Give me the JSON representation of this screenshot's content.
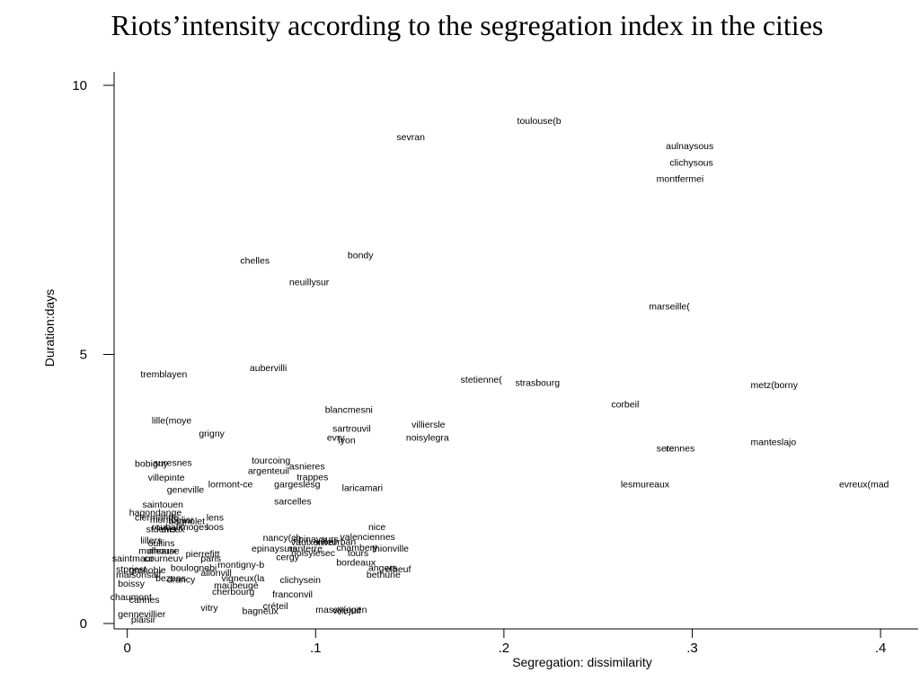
{
  "chart_data": {
    "type": "scatter",
    "title": "Riots’intensity according to the segregation index in the cities",
    "xlabel": "Segregation: dissimilarity",
    "ylabel": "Duration:days",
    "xlim": [
      -0.007,
      0.42
    ],
    "ylim": [
      -0.1,
      10.25
    ],
    "xticks": [
      {
        "value": 0,
        "label": "0"
      },
      {
        "value": 0.1,
        "label": ".1"
      },
      {
        "value": 0.2,
        "label": ".2"
      },
      {
        "value": 0.3,
        "label": ".3"
      },
      {
        "value": 0.4,
        "label": ".4"
      }
    ],
    "yticks": [
      {
        "value": 0,
        "label": "0"
      },
      {
        "value": 5,
        "label": "5"
      },
      {
        "value": 10,
        "label": "10"
      }
    ],
    "grid": false,
    "marker": "text-label",
    "points": [
      {
        "label": "toulouse(b",
        "x": 0.207,
        "y": 9.35
      },
      {
        "label": "sevran",
        "x": 0.143,
        "y": 9.05
      },
      {
        "label": "aulnaysous",
        "x": 0.286,
        "y": 8.88
      },
      {
        "label": "clichysous",
        "x": 0.288,
        "y": 8.57
      },
      {
        "label": "montfermei",
        "x": 0.281,
        "y": 8.27
      },
      {
        "label": "bondy",
        "x": 0.117,
        "y": 6.85
      },
      {
        "label": "chelles",
        "x": 0.06,
        "y": 6.75
      },
      {
        "label": "neuillysur",
        "x": 0.086,
        "y": 6.35
      },
      {
        "label": "marseille(",
        "x": 0.277,
        "y": 5.9
      },
      {
        "label": "tremblayen",
        "x": 0.007,
        "y": 4.64
      },
      {
        "label": "aubervilli",
        "x": 0.065,
        "y": 4.76
      },
      {
        "label": "stetienne(",
        "x": 0.177,
        "y": 4.54
      },
      {
        "label": "strasbourg",
        "x": 0.206,
        "y": 4.48
      },
      {
        "label": "metz(borny",
        "x": 0.331,
        "y": 4.44
      },
      {
        "label": "corbeil",
        "x": 0.257,
        "y": 4.08
      },
      {
        "label": "blancmesni",
        "x": 0.105,
        "y": 3.98
      },
      {
        "label": "lille(moye",
        "x": 0.013,
        "y": 3.78
      },
      {
        "label": "villiersle",
        "x": 0.151,
        "y": 3.71
      },
      {
        "label": "sartrouvil",
        "x": 0.109,
        "y": 3.63
      },
      {
        "label": "grigny",
        "x": 0.038,
        "y": 3.54
      },
      {
        "label": "evry",
        "x": 0.106,
        "y": 3.46
      },
      {
        "label": "noisylegra",
        "x": 0.148,
        "y": 3.46
      },
      {
        "label": "lyon",
        "x": 0.112,
        "y": 3.41
      },
      {
        "label": "manteslajo",
        "x": 0.331,
        "y": 3.38
      },
      {
        "label": "sete",
        "x": 0.281,
        "y": 3.26
      },
      {
        "label": "rennes",
        "x": 0.286,
        "y": 3.26
      },
      {
        "label": "tourcoing",
        "x": 0.066,
        "y": 3.04
      },
      {
        "label": "suresnes",
        "x": 0.014,
        "y": 3.0
      },
      {
        "label": "bobigny",
        "x": 0.004,
        "y": 2.98
      },
      {
        "label": "asnieres",
        "x": 0.086,
        "y": 2.93
      },
      {
        "label": "argenteuil",
        "x": 0.064,
        "y": 2.85
      },
      {
        "label": "villepinte",
        "x": 0.011,
        "y": 2.72
      },
      {
        "label": "trappes",
        "x": 0.09,
        "y": 2.73
      },
      {
        "label": "lormont-ce",
        "x": 0.043,
        "y": 2.6
      },
      {
        "label": "gargeslesg",
        "x": 0.078,
        "y": 2.6
      },
      {
        "label": "lesmureaux",
        "x": 0.262,
        "y": 2.6
      },
      {
        "label": "evreux(mad",
        "x": 0.378,
        "y": 2.6
      },
      {
        "label": "geneville",
        "x": 0.021,
        "y": 2.5
      },
      {
        "label": "laricamari",
        "x": 0.114,
        "y": 2.53
      },
      {
        "label": "sarcelles",
        "x": 0.078,
        "y": 2.28
      },
      {
        "label": "saintouen",
        "x": 0.008,
        "y": 2.22
      },
      {
        "label": "hagondange",
        "x": 0.001,
        "y": 2.07
      },
      {
        "label": "lens",
        "x": 0.042,
        "y": 1.98
      },
      {
        "label": "clermontfe",
        "x": 0.004,
        "y": 1.98
      },
      {
        "label": "montbeliar",
        "x": 0.012,
        "y": 1.94
      },
      {
        "label": "bagnolet",
        "x": 0.022,
        "y": 1.91
      },
      {
        "label": "nice",
        "x": 0.128,
        "y": 1.8
      },
      {
        "label": "loos",
        "x": 0.042,
        "y": 1.8
      },
      {
        "label": "roubaix",
        "x": 0.013,
        "y": 1.8
      },
      {
        "label": "stdenis",
        "x": 0.01,
        "y": 1.76
      },
      {
        "label": "dreux",
        "x": 0.018,
        "y": 1.76
      },
      {
        "label": "limoges",
        "x": 0.026,
        "y": 1.8
      },
      {
        "label": "valenciennes",
        "x": 0.113,
        "y": 1.62
      },
      {
        "label": "nancy(ch",
        "x": 0.072,
        "y": 1.6
      },
      {
        "label": "epinaysurs",
        "x": 0.088,
        "y": 1.58
      },
      {
        "label": "vaulxenvel",
        "x": 0.087,
        "y": 1.52
      },
      {
        "label": "villeurban",
        "x": 0.1,
        "y": 1.53
      },
      {
        "label": "lillers",
        "x": 0.007,
        "y": 1.55
      },
      {
        "label": "oullins",
        "x": 0.011,
        "y": 1.5
      },
      {
        "label": "epinaysurs",
        "x": 0.066,
        "y": 1.4
      },
      {
        "label": "nanterre",
        "x": 0.085,
        "y": 1.4
      },
      {
        "label": "thionville",
        "x": 0.13,
        "y": 1.4
      },
      {
        "label": "chambery",
        "x": 0.111,
        "y": 1.42
      },
      {
        "label": "tours",
        "x": 0.117,
        "y": 1.32
      },
      {
        "label": "noisylesec",
        "x": 0.087,
        "y": 1.32
      },
      {
        "label": "cergy",
        "x": 0.079,
        "y": 1.24
      },
      {
        "label": "mulhouse",
        "x": 0.006,
        "y": 1.36
      },
      {
        "label": "meaux",
        "x": 0.011,
        "y": 1.36
      },
      {
        "label": "pierrefitt",
        "x": 0.031,
        "y": 1.3
      },
      {
        "label": "paris",
        "x": 0.039,
        "y": 1.22
      },
      {
        "label": "courneuv",
        "x": 0.009,
        "y": 1.22
      },
      {
        "label": "saintmaur",
        "x": -0.008,
        "y": 1.22
      },
      {
        "label": "montigny-b",
        "x": 0.048,
        "y": 1.1
      },
      {
        "label": "bordeaux",
        "x": 0.111,
        "y": 1.14
      },
      {
        "label": "angers",
        "x": 0.128,
        "y": 1.04
      },
      {
        "label": "elbeuf",
        "x": 0.137,
        "y": 1.02
      },
      {
        "label": "bethune",
        "x": 0.127,
        "y": 0.92
      },
      {
        "label": "boulognebi",
        "x": 0.023,
        "y": 1.04
      },
      {
        "label": "stpriest",
        "x": -0.006,
        "y": 1.02
      },
      {
        "label": "grenoble",
        "x": 0.001,
        "y": 1.0
      },
      {
        "label": "allonvill",
        "x": 0.039,
        "y": 0.95
      },
      {
        "label": "vigneux(la",
        "x": 0.05,
        "y": 0.85
      },
      {
        "label": "clichysein",
        "x": 0.081,
        "y": 0.82
      },
      {
        "label": "maisonsalf",
        "x": -0.006,
        "y": 0.92
      },
      {
        "label": "drancy",
        "x": 0.021,
        "y": 0.83
      },
      {
        "label": "bezons",
        "x": 0.015,
        "y": 0.85
      },
      {
        "label": "boissy",
        "x": -0.005,
        "y": 0.75
      },
      {
        "label": "maubeuge",
        "x": 0.046,
        "y": 0.72
      },
      {
        "label": "cherbourg",
        "x": 0.045,
        "y": 0.6
      },
      {
        "label": "franconvil",
        "x": 0.077,
        "y": 0.55
      },
      {
        "label": "chaumont",
        "x": -0.009,
        "y": 0.5
      },
      {
        "label": "cannes",
        "x": 0.001,
        "y": 0.45
      },
      {
        "label": "créteil",
        "x": 0.072,
        "y": 0.33
      },
      {
        "label": "vitry",
        "x": 0.039,
        "y": 0.3
      },
      {
        "label": "bagneux",
        "x": 0.061,
        "y": 0.24
      },
      {
        "label": "massy(open",
        "x": 0.1,
        "y": 0.27
      },
      {
        "label": "villejuif",
        "x": 0.109,
        "y": 0.25
      },
      {
        "label": "gennevillier",
        "x": -0.005,
        "y": 0.18
      },
      {
        "label": "plaisir",
        "x": 0.002,
        "y": 0.08
      }
    ]
  }
}
